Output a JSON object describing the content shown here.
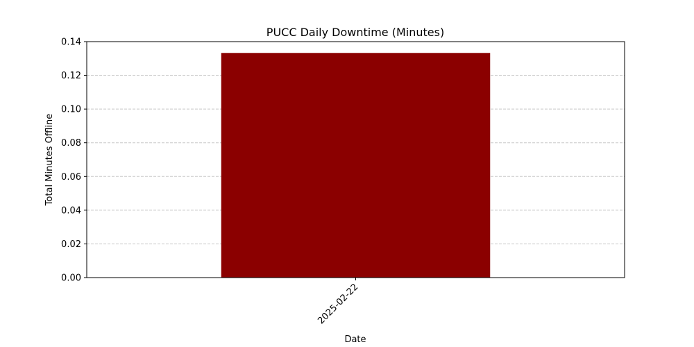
{
  "chart_data": {
    "type": "bar",
    "title": "PUCC Daily Downtime (Minutes)",
    "xlabel": "Date",
    "ylabel": "Total Minutes Offline",
    "categories": [
      "2025-02-22"
    ],
    "values": [
      0.1333
    ],
    "ylim": [
      0,
      0.14
    ],
    "yticks": [
      "0.00",
      "0.02",
      "0.04",
      "0.06",
      "0.08",
      "0.10",
      "0.12",
      "0.14"
    ],
    "grid": "y-dashed",
    "legend": "none",
    "bar_color": "#8b0000",
    "grid_color": "#c8c8c8"
  }
}
